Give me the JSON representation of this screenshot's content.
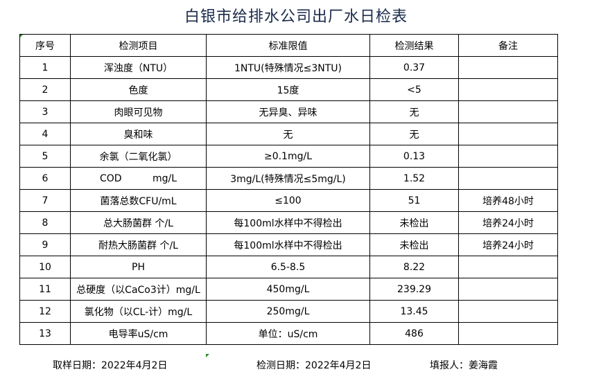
{
  "title": "白银市给排水公司出厂水日检表",
  "headers": [
    "序号",
    "检测项目",
    "标准限值",
    "检测结果",
    "备注"
  ],
  "rows": [
    [
      "1",
      "浑浊度（NTU）",
      "1NTU(特殊情况≤3NTU)",
      "0.37",
      ""
    ],
    [
      "2",
      "色度",
      "15度",
      "<5",
      ""
    ],
    [
      "3",
      "肉眼可见物",
      "无异臭、异味",
      "无",
      ""
    ],
    [
      "4",
      "臭和味",
      "无",
      "无",
      ""
    ],
    [
      "5",
      "余氯（二氧化氯）",
      "≥0.1mg/L",
      "0.13",
      ""
    ],
    [
      "6",
      "COD          mg/L",
      "3mg/L(特殊情况≤5mg/L)",
      "1.52",
      ""
    ],
    [
      "7",
      "菌落总数CFU/mL",
      "≤100",
      "51",
      "培养48小时"
    ],
    [
      "8",
      "总大肠菌群 个/L",
      "每100ml水样中不得检出",
      "未检出",
      "培养24小时"
    ],
    [
      "9",
      "耐热大肠菌群 个/L",
      "每100ml水样中不得检出",
      "未检出",
      "培养24小时"
    ],
    [
      "10",
      "PH",
      "6.5-8.5",
      "8.22",
      ""
    ],
    [
      "11",
      "总硬度（以CaCo3计）mg/L",
      "450mg/L",
      "239.29",
      ""
    ],
    [
      "12",
      "氯化物（以CL-计）mg/L",
      "250mg/L",
      "13.45",
      ""
    ],
    [
      "13",
      "电导率uS/cm",
      "单位：uS/cm",
      "486",
      ""
    ]
  ],
  "footer": {
    "sampling_date": "取样日期：2022年4月2日",
    "test_date": "检测日期：2022年4月2日",
    "filled_by": "填报人：姜海霞"
  }
}
